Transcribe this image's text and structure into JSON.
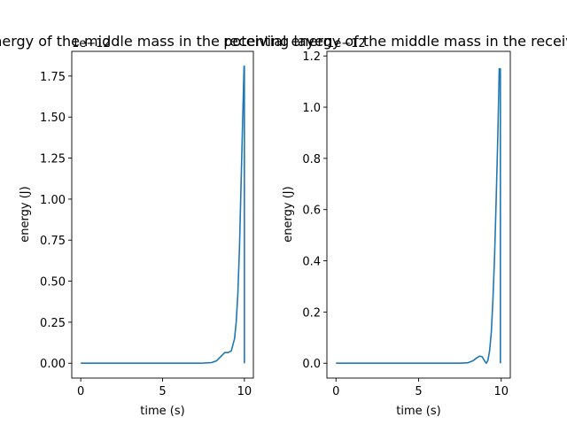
{
  "chart_data": [
    {
      "type": "line",
      "title": "kinetic energy of the middle mass in the receiving layer",
      "title_visible": "c energy of the middle mass in the receiving layer",
      "xlabel": "time (s)",
      "ylabel": "energy (J)",
      "offset_label": "1e−12",
      "xlim": [
        -0.55,
        10.55
      ],
      "ylim": [
        -0.0905,
        1.9005
      ],
      "xticks": [
        0,
        5,
        10
      ],
      "yticks": [
        0.0,
        0.25,
        0.5,
        0.75,
        1.0,
        1.25,
        1.5,
        1.75
      ],
      "ytick_labels": [
        "0.00",
        "0.25",
        "0.50",
        "0.75",
        "1.00",
        "1.25",
        "1.50",
        "1.75"
      ],
      "grid": false,
      "series": [
        {
          "color": "#1f77b4",
          "x": [
            0,
            1,
            2,
            3,
            4,
            5,
            6,
            7,
            7.5,
            8.0,
            8.3,
            8.6,
            8.8,
            9.0,
            9.2,
            9.4,
            9.5,
            9.6,
            9.7,
            9.8,
            9.9,
            9.98,
            10.0,
            10.0
          ],
          "y": [
            0,
            0,
            0,
            0,
            0,
            0,
            0,
            0,
            0.001,
            0.004,
            0.015,
            0.045,
            0.065,
            0.065,
            0.075,
            0.15,
            0.25,
            0.42,
            0.7,
            1.1,
            1.5,
            1.81,
            1.81,
            0.0
          ]
        }
      ]
    },
    {
      "type": "line",
      "title": "potential energy of the middle mass in the receiving layer",
      "title_visible": "potential energy of the middle mass in the receiv",
      "xlabel": "time (s)",
      "ylabel": "energy (J)",
      "offset_label": "1e−12",
      "xlim": [
        -0.55,
        10.55
      ],
      "ylim": [
        -0.058,
        1.218
      ],
      "xticks": [
        0,
        5,
        10
      ],
      "yticks": [
        0.0,
        0.2,
        0.4,
        0.6,
        0.8,
        1.0,
        1.2
      ],
      "ytick_labels": [
        "0.0",
        "0.2",
        "0.4",
        "0.6",
        "0.8",
        "1.0",
        "1.2"
      ],
      "grid": false,
      "series": [
        {
          "color": "#1f77b4",
          "x": [
            0,
            1,
            2,
            3,
            4,
            5,
            6,
            7,
            7.5,
            8.0,
            8.3,
            8.5,
            8.7,
            8.85,
            9.0,
            9.1,
            9.2,
            9.3,
            9.4,
            9.5,
            9.6,
            9.7,
            9.8,
            9.88,
            9.95,
            9.95
          ],
          "y": [
            0,
            0,
            0,
            0,
            0,
            0,
            0,
            0,
            0.0,
            0.002,
            0.01,
            0.02,
            0.028,
            0.025,
            0.008,
            0.0,
            0.012,
            0.05,
            0.12,
            0.25,
            0.42,
            0.65,
            0.9,
            1.15,
            1.15,
            0.0
          ]
        }
      ]
    }
  ]
}
